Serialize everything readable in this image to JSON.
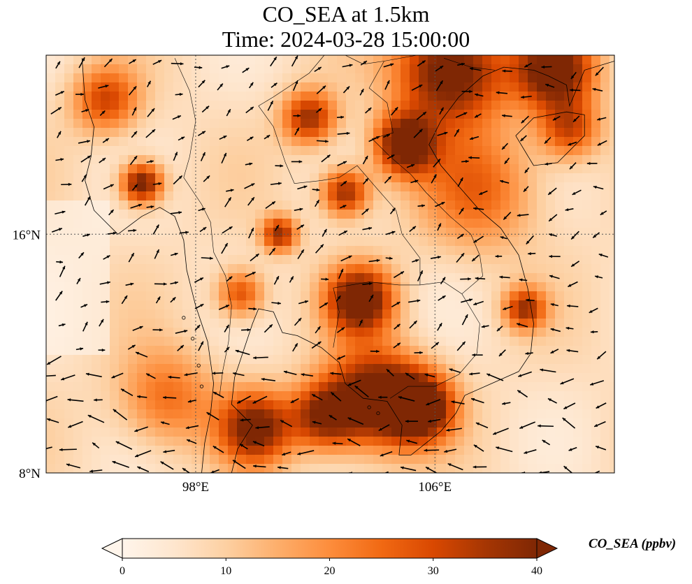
{
  "title": {
    "line1": "CO_SEA at 1.5km",
    "line2": "Time: 2024-03-28 15:00:00"
  },
  "axes": {
    "lon_ticks": [
      {
        "lon": 98,
        "label": "98°E"
      },
      {
        "lon": 106,
        "label": "106°E"
      }
    ],
    "lat_ticks": [
      {
        "lat": 16,
        "label": "16°N"
      },
      {
        "lat": 8,
        "label": "8°N"
      }
    ],
    "lon_range": [
      93,
      112
    ],
    "lat_range": [
      8,
      22
    ],
    "gridlines": "dotted"
  },
  "colorbar": {
    "label": "CO_SEA (ppbv)",
    "ticks": [
      0,
      10,
      20,
      30,
      40
    ],
    "range": [
      0,
      40
    ],
    "extend": "both",
    "colormap": [
      "#fff5eb",
      "#fee6ce",
      "#fdd0a2",
      "#fdae6b",
      "#fd8d3c",
      "#f16913",
      "#d94801",
      "#a63603",
      "#7f2704"
    ]
  },
  "field": {
    "variable": "CO_SEA",
    "background_ppbv": 8,
    "plumes": [
      {
        "lon": 104.0,
        "lat": 10.5,
        "value": 40,
        "spread": 1.6
      },
      {
        "lon": 105.5,
        "lat": 10.2,
        "value": 40,
        "spread": 1.1
      },
      {
        "lon": 103.5,
        "lat": 13.8,
        "value": 40,
        "spread": 1.1
      },
      {
        "lon": 100.0,
        "lat": 9.5,
        "value": 34,
        "spread": 1.2
      },
      {
        "lon": 102.3,
        "lat": 9.9,
        "value": 30,
        "spread": 1.1
      },
      {
        "lon": 106.5,
        "lat": 21.5,
        "value": 40,
        "spread": 1.8
      },
      {
        "lon": 105.0,
        "lat": 19.0,
        "value": 40,
        "spread": 1.0
      },
      {
        "lon": 110.0,
        "lat": 21.5,
        "value": 38,
        "spread": 1.3
      },
      {
        "lon": 96.2,
        "lat": 17.7,
        "value": 38,
        "spread": 0.7
      },
      {
        "lon": 101.8,
        "lat": 19.9,
        "value": 30,
        "spread": 0.9
      },
      {
        "lon": 103.0,
        "lat": 17.4,
        "value": 32,
        "spread": 0.8
      },
      {
        "lon": 100.8,
        "lat": 16.0,
        "value": 30,
        "spread": 0.6
      },
      {
        "lon": 95.0,
        "lat": 20.5,
        "value": 24,
        "spread": 1.1
      },
      {
        "lon": 110.5,
        "lat": 19.5,
        "value": 24,
        "spread": 1.0
      },
      {
        "lon": 109.0,
        "lat": 13.5,
        "value": 28,
        "spread": 0.7
      },
      {
        "lon": 99.5,
        "lat": 14.0,
        "value": 24,
        "spread": 0.8
      },
      {
        "lon": 107.5,
        "lat": 17.5,
        "value": 18,
        "spread": 2.0
      },
      {
        "lon": 97.0,
        "lat": 10.5,
        "value": 18,
        "spread": 1.6
      }
    ]
  },
  "wind_vectors": {
    "description_units": "arbitrary",
    "regimes": [
      {
        "region": "south",
        "u": -1.0,
        "v": 0.12,
        "speed": 1.0
      },
      {
        "region": "north",
        "u": 0.6,
        "v": 0.35,
        "speed": 0.6
      },
      {
        "region": "east",
        "u": -0.7,
        "v": -0.2,
        "speed": 0.55
      }
    ]
  }
}
